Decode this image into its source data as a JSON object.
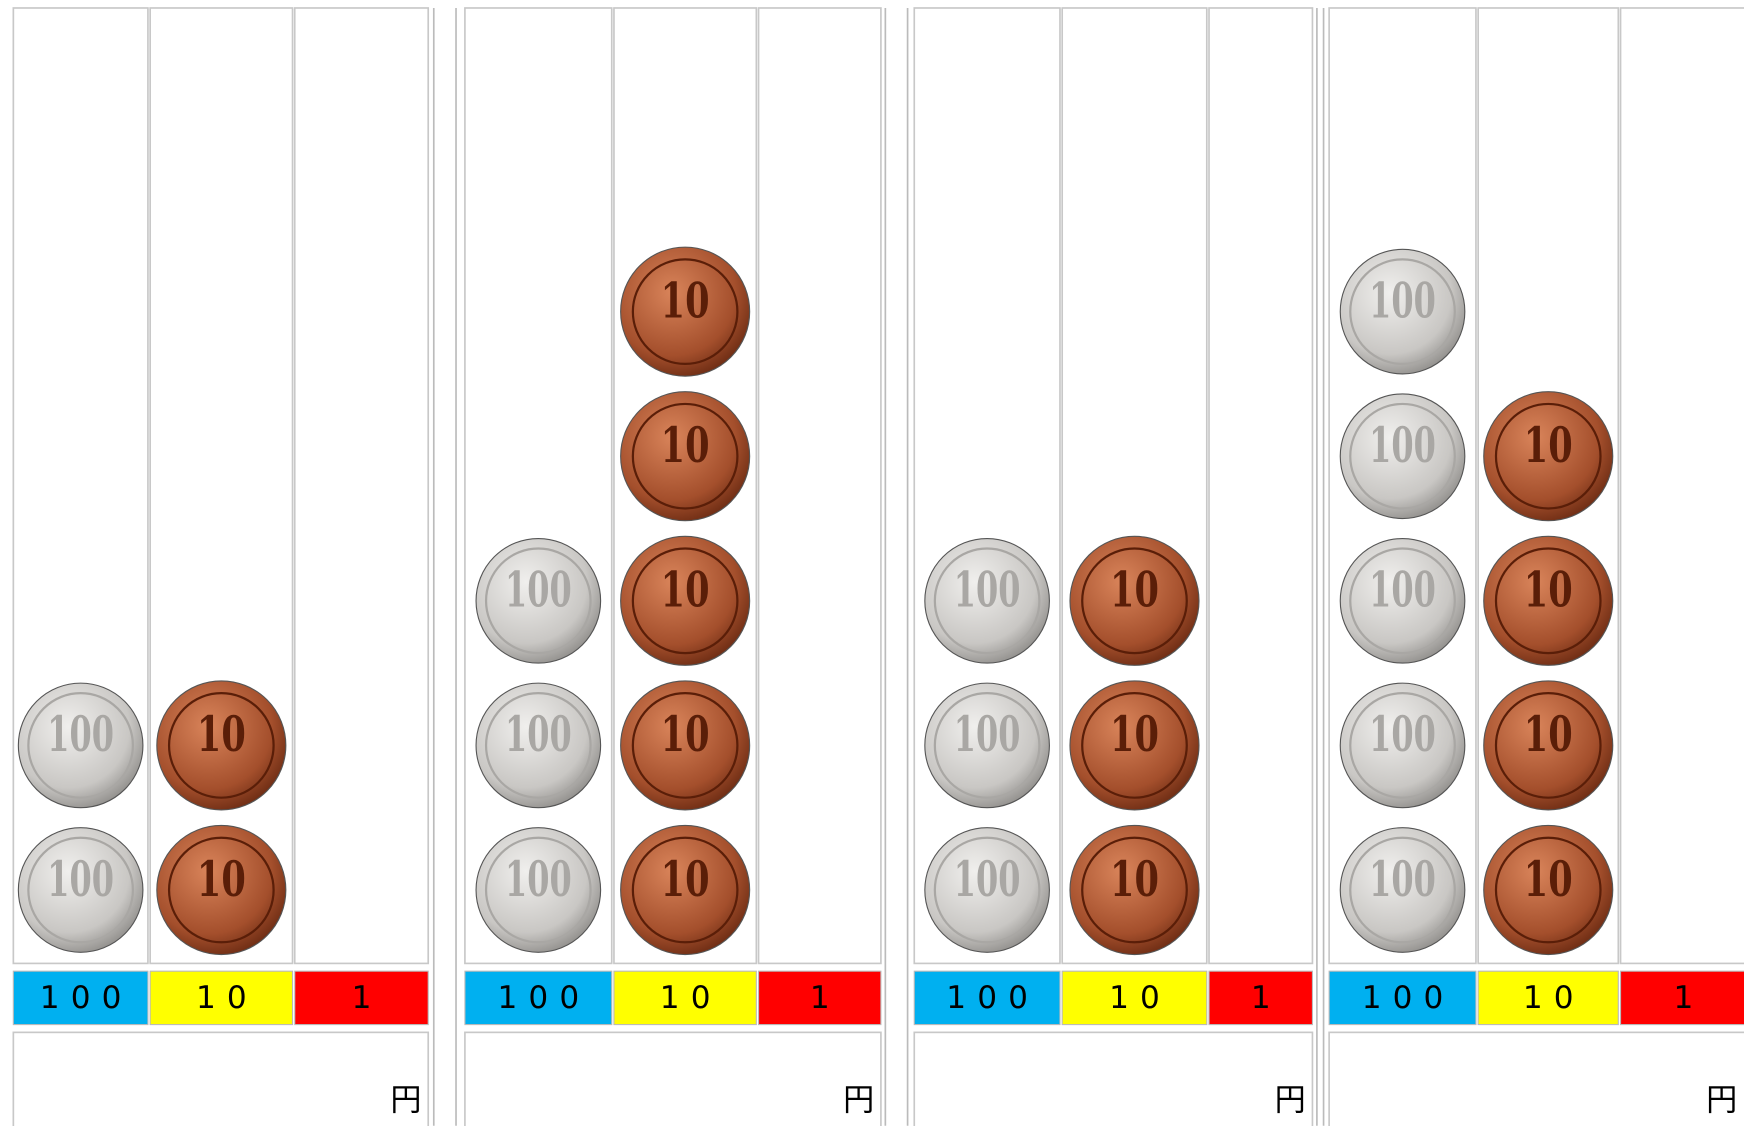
{
  "panels": [
    {
      "columns": [
        {
          "label": "100",
          "coins": 2
        },
        {
          "label": "10",
          "coins": 2
        },
        {
          "label": "1",
          "coins": 0
        }
      ],
      "unit": "円"
    },
    {
      "columns": [
        {
          "label": "100",
          "coins": 3
        },
        {
          "label": "10",
          "coins": 5
        },
        {
          "label": "1",
          "coins": 0
        }
      ],
      "unit": "円"
    },
    {
      "columns": [
        {
          "label": "100",
          "coins": 3
        },
        {
          "label": "10",
          "coins": 3
        },
        {
          "label": "1",
          "coins": 0
        }
      ],
      "unit": "円"
    },
    {
      "columns": [
        {
          "label": "100",
          "coins": 5
        },
        {
          "label": "10",
          "coins": 4
        },
        {
          "label": "1",
          "coins": 0
        }
      ],
      "unit": "円"
    }
  ]
}
